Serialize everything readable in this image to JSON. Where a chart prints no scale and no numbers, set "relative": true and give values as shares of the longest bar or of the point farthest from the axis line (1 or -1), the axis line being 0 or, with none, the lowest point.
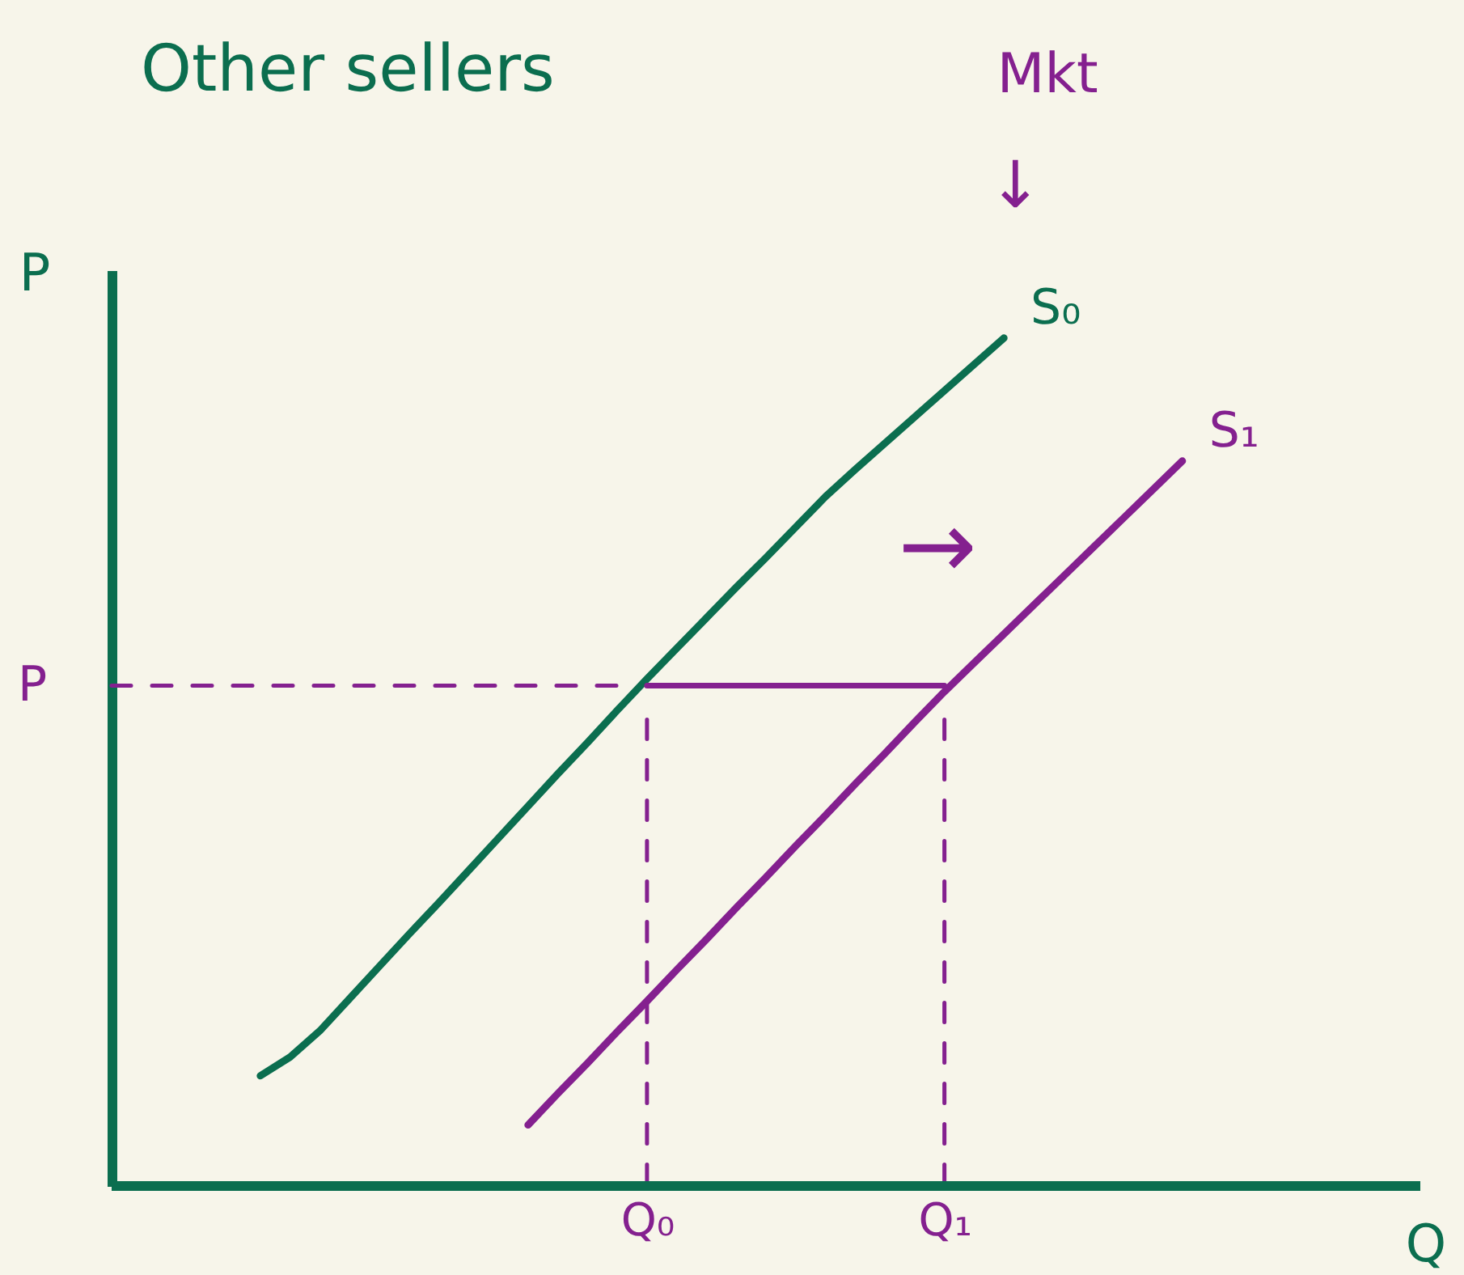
{
  "chart_data": {
    "type": "line",
    "title": "Other sellers",
    "xlabel": "Q",
    "ylabel": "P",
    "relative": true,
    "categories": [
      null,
      null,
      null,
      null,
      null,
      null,
      null,
      null,
      null,
      null,
      null,
      null,
      null,
      null,
      null,
      null,
      null,
      null,
      "Q₀",
      null,
      null,
      null,
      null,
      null,
      null,
      null,
      null,
      null,
      "Q₁",
      null,
      null,
      null,
      null,
      null,
      null,
      null,
      null,
      null,
      null,
      null,
      null,
      null,
      null,
      null,
      null
    ],
    "series": [
      {
        "name": "S₀",
        "color": "#0b6e4f",
        "values": [
          null,
          null,
          null,
          null,
          null,
          0.13,
          0.152,
          0.183,
          0.221,
          0.259,
          0.297,
          0.334,
          0.372,
          0.41,
          0.448,
          0.486,
          0.523,
          0.561,
          0.598,
          0.634,
          0.67,
          0.706,
          0.741,
          0.777,
          0.813,
          0.845,
          0.876,
          0.907,
          0.938,
          0.969,
          1.0,
          null,
          null,
          null,
          null,
          null,
          null,
          null,
          null,
          null,
          null,
          null,
          null,
          null,
          null
        ]
      },
      {
        "name": "S₁",
        "color": "#84208f",
        "values": [
          null,
          null,
          null,
          null,
          null,
          null,
          null,
          null,
          null,
          null,
          null,
          null,
          null,
          null,
          0.072,
          0.109,
          0.145,
          0.182,
          0.218,
          0.255,
          0.291,
          0.328,
          0.364,
          0.401,
          0.437,
          0.474,
          0.51,
          0.547,
          0.583,
          0.617,
          0.651,
          0.685,
          0.719,
          0.753,
          0.787,
          0.821,
          0.855,
          null,
          null,
          null,
          null,
          null,
          null,
          null,
          null
        ]
      },
      {
        "color": "#84208f",
        "line_style": "dashed",
        "values": [
          0.59,
          0.59,
          0.59,
          0.59,
          0.59,
          0.59,
          0.59,
          0.59,
          0.59,
          0.59,
          0.59,
          0.59,
          0.59,
          0.59,
          0.59,
          0.59,
          0.59,
          0.59,
          null,
          null,
          null,
          null,
          null,
          null,
          null,
          null,
          null,
          null,
          null,
          null,
          null,
          null,
          null,
          null,
          null,
          null,
          null,
          null,
          null,
          null,
          null,
          null,
          null,
          null,
          null
        ]
      },
      {
        "color": "#84208f",
        "line_style": "solid",
        "values": [
          null,
          null,
          null,
          null,
          null,
          null,
          null,
          null,
          null,
          null,
          null,
          null,
          null,
          null,
          null,
          null,
          null,
          null,
          0.59,
          0.59,
          0.59,
          0.59,
          0.59,
          0.59,
          0.59,
          0.59,
          0.59,
          0.59,
          0.59,
          null,
          null,
          null,
          null,
          null,
          null,
          null,
          null,
          null,
          null,
          null,
          null,
          null,
          null,
          null,
          null
        ]
      },
      {
        "color": "#84208f",
        "line_style": "dashed",
        "x": [
          "Q₀",
          "Q₀"
        ],
        "values": [
          0.55,
          0
        ]
      },
      {
        "color": "#84208f",
        "line_style": "dashed",
        "x": [
          "Q₁",
          "Q₁"
        ],
        "values": [
          0.55,
          0
        ]
      }
    ],
    "ref_lines": [
      {
        "axis": "y",
        "value": 0,
        "color": "#0b6e4f"
      }
    ],
    "annotations": [
      "Mkt",
      "↓",
      "→",
      "P"
    ]
  }
}
